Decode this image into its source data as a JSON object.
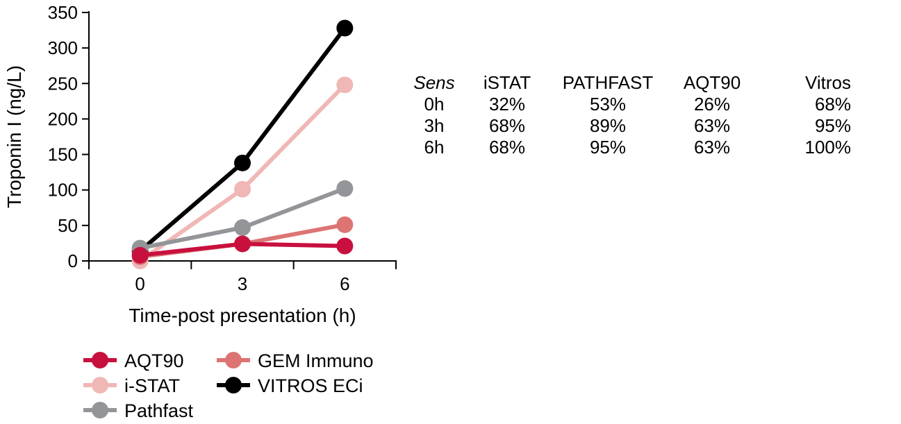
{
  "chart_data": {
    "type": "line",
    "title": "",
    "xlabel": "Time-post presentation (h)",
    "ylabel": "Troponin I (ng/L)",
    "xlim": [
      -1.5,
      7.5
    ],
    "ylim": [
      0,
      350
    ],
    "x": [
      0,
      3,
      6
    ],
    "xticks": [
      0,
      3,
      6
    ],
    "yticks": [
      0,
      50,
      100,
      150,
      200,
      250,
      300,
      350
    ],
    "grid": false,
    "legend_placement": "bottom",
    "series": [
      {
        "name": "AQT90",
        "color": "#c8103e",
        "values": [
          8,
          24,
          21
        ]
      },
      {
        "name": "GEM Immuno",
        "color": "#dd7474",
        "values": [
          6,
          24,
          51
        ]
      },
      {
        "name": "i-STAT",
        "color": "#efb7b5",
        "values": [
          0,
          101,
          248
        ]
      },
      {
        "name": "VITROS ECi",
        "color": "#000000",
        "values": [
          14,
          138,
          328
        ]
      },
      {
        "name": "Pathfast",
        "color": "#939598",
        "values": [
          18,
          47,
          102
        ]
      }
    ]
  },
  "table": {
    "header": [
      "Sens",
      "iSTAT",
      "PATHFAST",
      "AQT90",
      "Vitros"
    ],
    "rows": [
      [
        "0h",
        "32%",
        "53%",
        "26%",
        "68%"
      ],
      [
        "3h",
        "68%",
        "89%",
        "63%",
        "95%"
      ],
      [
        "6h",
        "68%",
        "95%",
        "63%",
        "100%"
      ]
    ]
  }
}
